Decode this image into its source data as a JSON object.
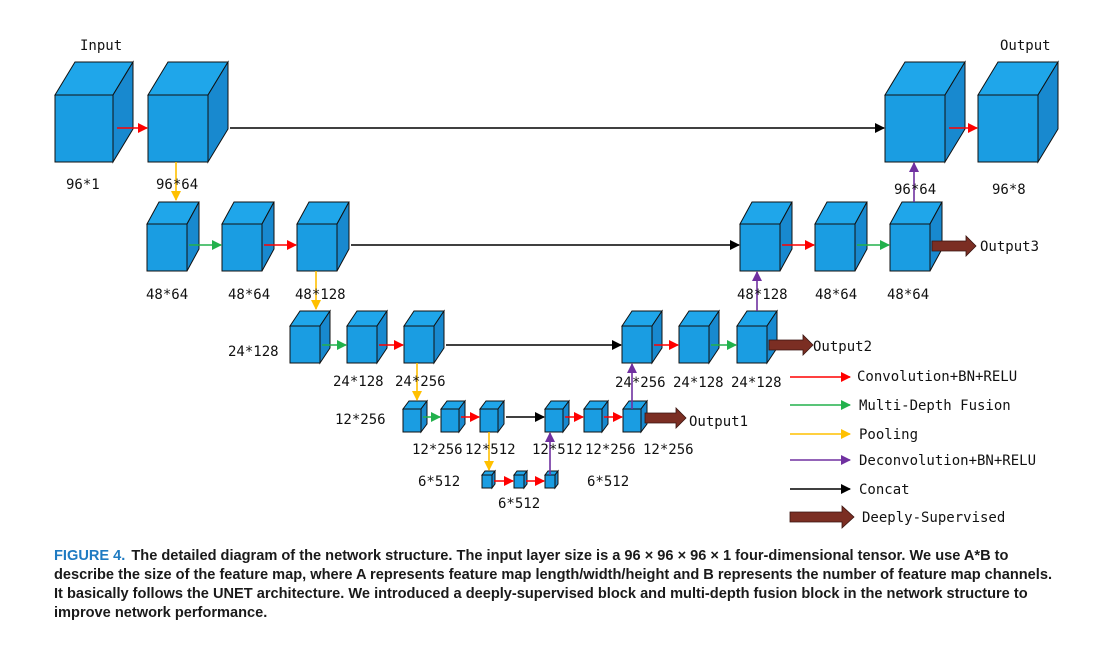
{
  "labels": {
    "input": "Input",
    "output": "Output",
    "s96_1": "96*1",
    "s96_64a": "96*64",
    "s96_64b": "96*64",
    "s96_8": "96*8",
    "s48_64a": "48*64",
    "s48_64b": "48*64",
    "s48_128a": "48*128",
    "s48_128b": "48*128",
    "s48_64c": "48*64",
    "s48_64d": "48*64",
    "output3": "Output3",
    "s24_128a": "24*128",
    "s24_128b": "24*128",
    "s24_256a": "24*256",
    "s24_256b": "24*256",
    "s24_128c": "24*128",
    "s24_128d": "24*128",
    "output2": "Output2",
    "s12_256a": "12*256",
    "s12_256b": "12*256",
    "s12_512a": "12*512",
    "s12_512b": "12*512",
    "s12_256c": "12*256",
    "s12_256d": "12*256",
    "output1": "Output1",
    "s6_512a": "6*512",
    "s6_512b": "6*512",
    "s6_512c": "6*512"
  },
  "legend": [
    {
      "label": "Convolution+BN+RELU",
      "color": "#ff0000"
    },
    {
      "label": "Multi-Depth Fusion",
      "color": "#22b14c"
    },
    {
      "label": "Pooling",
      "color": "#ffc000"
    },
    {
      "label": "Deconvolution+BN+RELU",
      "color": "#7030a0"
    },
    {
      "label": "Concat",
      "color": "#000000"
    },
    {
      "label": "Deeply-Supervised",
      "color": "#7b2e23"
    }
  ],
  "colors": {
    "conv": "#ff0000",
    "fusion": "#22b14c",
    "pool": "#ffc000",
    "deconv": "#7030a0",
    "concat": "#000000",
    "deep": "#7b2e23",
    "cube": "#1a9de2",
    "caption_label": "#1f7bc2"
  },
  "caption": {
    "figure_label": "FIGURE 4.",
    "text": "The detailed diagram of the network structure. The input layer size is a 96 × 96 × 96 × 1 four-dimensional tensor. We use A*B to describe the size of the feature map, where A represents feature map length/width/height and B represents the number of feature map channels. It basically follows the UNET architecture. We introduced a deeply-supervised block and multi-depth fusion block in the network structure to improve network performance."
  }
}
